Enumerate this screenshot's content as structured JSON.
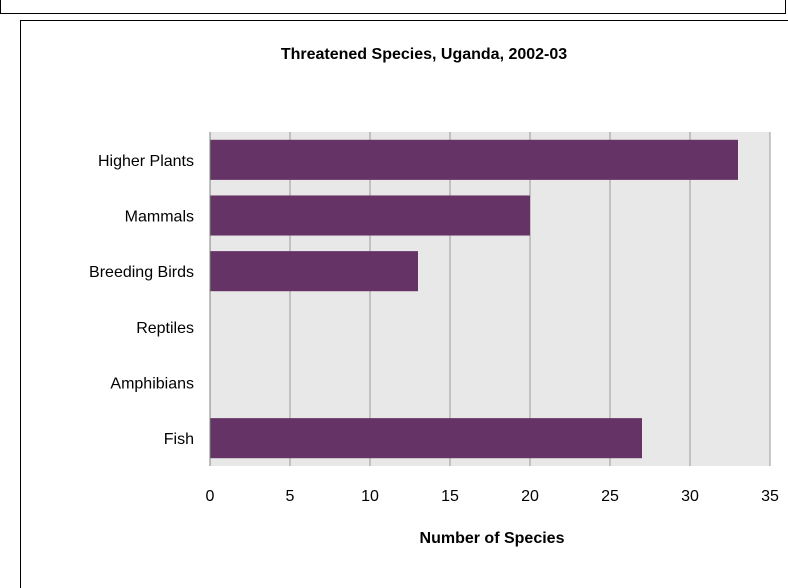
{
  "chart_data": {
    "type": "bar",
    "orientation": "horizontal",
    "title": "Threatened Species, Uganda, 2002-03",
    "xlabel": "Number of Species",
    "ylabel": "",
    "categories": [
      "Higher Plants",
      "Mammals",
      "Breeding Birds",
      "Reptiles",
      "Amphibians",
      "Fish"
    ],
    "values": [
      33,
      20,
      13,
      0,
      0,
      27
    ],
    "xlim": [
      0,
      35
    ],
    "xticks": [
      0,
      5,
      10,
      15,
      20,
      25,
      30,
      35
    ],
    "grid": "vertical",
    "legend": "none",
    "colors": {
      "bar": "#663366",
      "plot_bg": "#e8e8e8",
      "grid": "#9a9a9a"
    }
  }
}
